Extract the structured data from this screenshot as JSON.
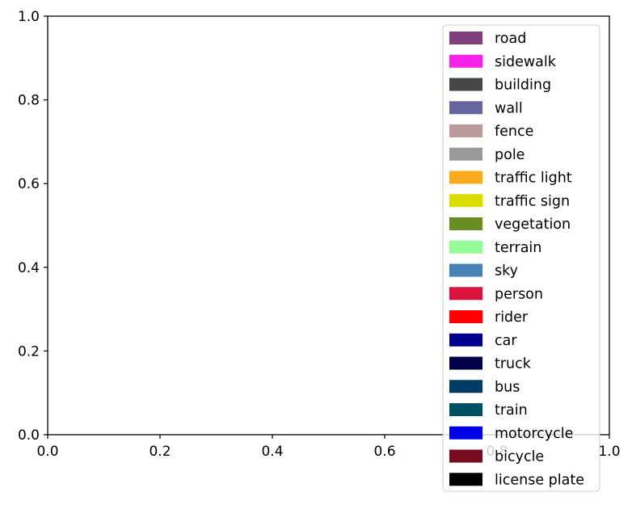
{
  "chart_data": {
    "type": "bar",
    "title": "",
    "xlabel": "",
    "ylabel": "",
    "xlim": [
      0,
      1
    ],
    "ylim": [
      0,
      1
    ],
    "x_ticks": [
      "0.0",
      "0.2",
      "0.4",
      "0.6",
      "0.8",
      "1.0"
    ],
    "y_ticks": [
      "0.0",
      "0.2",
      "0.4",
      "0.6",
      "0.8",
      "1.0"
    ],
    "grid": false,
    "legend_position": "top-right",
    "series": [],
    "legend": [
      {
        "label": "road",
        "color": "#804080"
      },
      {
        "label": "sidewalk",
        "color": "#f423e8"
      },
      {
        "label": "building",
        "color": "#464646"
      },
      {
        "label": "wall",
        "color": "#66669c"
      },
      {
        "label": "fence",
        "color": "#be9999"
      },
      {
        "label": "pole",
        "color": "#999999"
      },
      {
        "label": "traffic light",
        "color": "#faaa1e"
      },
      {
        "label": "traffic sign",
        "color": "#dcdc00"
      },
      {
        "label": "vegetation",
        "color": "#6b8e23"
      },
      {
        "label": "terrain",
        "color": "#98fb98"
      },
      {
        "label": "sky",
        "color": "#4682b4"
      },
      {
        "label": "person",
        "color": "#dc143c"
      },
      {
        "label": "rider",
        "color": "#ff0000"
      },
      {
        "label": "car",
        "color": "#00008e"
      },
      {
        "label": "truck",
        "color": "#000046"
      },
      {
        "label": "bus",
        "color": "#003c64"
      },
      {
        "label": "train",
        "color": "#005064"
      },
      {
        "label": "motorcycle",
        "color": "#0000e6"
      },
      {
        "label": "bicycle",
        "color": "#770b20"
      },
      {
        "label": "license plate",
        "color": "#000000"
      }
    ]
  }
}
